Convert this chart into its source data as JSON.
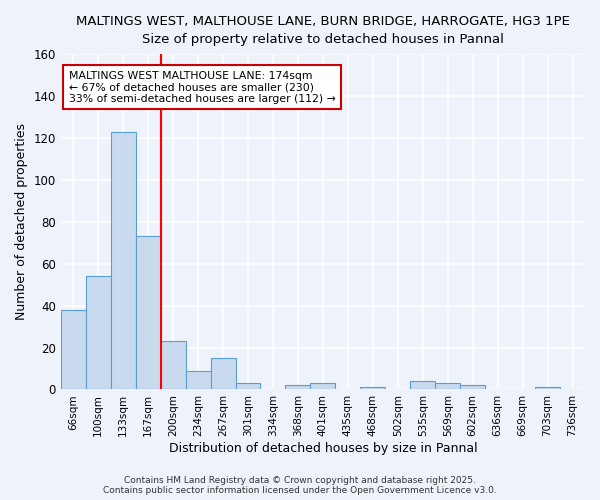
{
  "title1": "MALTINGS WEST, MALTHOUSE LANE, BURN BRIDGE, HARROGATE, HG3 1PE",
  "title2": "Size of property relative to detached houses in Pannal",
  "xlabel": "Distribution of detached houses by size in Pannal",
  "ylabel": "Number of detached properties",
  "categories": [
    "66sqm",
    "100sqm",
    "133sqm",
    "167sqm",
    "200sqm",
    "234sqm",
    "267sqm",
    "301sqm",
    "334sqm",
    "368sqm",
    "401sqm",
    "435sqm",
    "468sqm",
    "502sqm",
    "535sqm",
    "569sqm",
    "602sqm",
    "636sqm",
    "669sqm",
    "703sqm",
    "736sqm"
  ],
  "values": [
    38,
    54,
    123,
    73,
    23,
    9,
    15,
    3,
    0,
    2,
    3,
    0,
    1,
    0,
    4,
    3,
    2,
    0,
    0,
    1,
    0
  ],
  "bar_color": "#c9d9ee",
  "bar_edge_color": "#5a9fd4",
  "redline_x": 3.5,
  "ylim": [
    0,
    160
  ],
  "yticks": [
    0,
    20,
    40,
    60,
    80,
    100,
    120,
    140,
    160
  ],
  "annotation_text": "MALTINGS WEST MALTHOUSE LANE: 174sqm\n← 67% of detached houses are smaller (230)\n33% of semi-detached houses are larger (112) →",
  "footnote": "Contains HM Land Registry data © Crown copyright and database right 2025.\nContains public sector information licensed under the Open Government Licence v3.0.",
  "bg_color": "#eef2fa",
  "grid_color": "#ffffff",
  "annotation_box_color": "#ffffff",
  "annotation_border_color": "#cc0000",
  "title1_fontsize": 9.5,
  "title2_fontsize": 9.5
}
